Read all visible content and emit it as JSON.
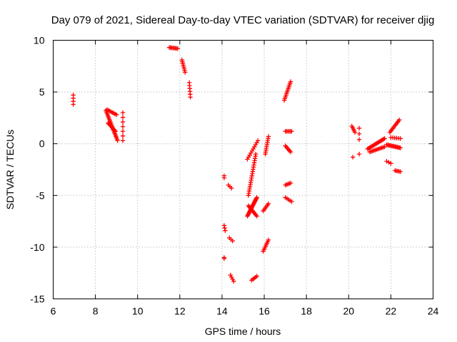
{
  "chart_data": {
    "type": "scatter",
    "title": "Day 079 of 2021, Sidereal Day-to-day VTEC variation (SDTVAR) for receiver djig",
    "xlabel": "GPS time / hours",
    "ylabel": "SDTVAR / TECUs",
    "xlim": [
      6,
      24
    ],
    "ylim": [
      -15,
      10
    ],
    "x_ticks": [
      "6",
      "8",
      "10",
      "12",
      "14",
      "16",
      "18",
      "20",
      "22",
      "24"
    ],
    "y_ticks": [
      "10",
      "5",
      "0",
      "-5",
      "-10",
      "-15"
    ],
    "grid": true,
    "marker": "+",
    "color": "#ff0000",
    "segments": [
      {
        "x0": 6.95,
        "y0": 4.7,
        "x1": 6.95,
        "y1": 3.8,
        "n": 4
      },
      {
        "x0": 8.5,
        "y0": 3.2,
        "x1": 9.05,
        "y1": 0.3,
        "n": 22
      },
      {
        "x0": 8.55,
        "y0": 3.3,
        "x1": 9.0,
        "y1": 2.8,
        "n": 8
      },
      {
        "x0": 8.6,
        "y0": 2.0,
        "x1": 8.95,
        "y1": 1.2,
        "n": 10
      },
      {
        "x0": 9.3,
        "y0": 3.0,
        "x1": 9.3,
        "y1": 0.3,
        "n": 7
      },
      {
        "x0": 11.5,
        "y0": 9.3,
        "x1": 11.9,
        "y1": 9.2,
        "n": 8
      },
      {
        "x0": 12.1,
        "y0": 8.1,
        "x1": 12.25,
        "y1": 6.9,
        "n": 8
      },
      {
        "x0": 12.45,
        "y0": 5.9,
        "x1": 12.5,
        "y1": 4.5,
        "n": 6
      },
      {
        "x0": 14.1,
        "y0": -3.1,
        "x1": 14.1,
        "y1": -3.3,
        "n": 2
      },
      {
        "x0": 14.3,
        "y0": -4.0,
        "x1": 14.45,
        "y1": -4.3,
        "n": 3
      },
      {
        "x0": 14.1,
        "y0": -7.9,
        "x1": 14.15,
        "y1": -8.4,
        "n": 3
      },
      {
        "x0": 14.35,
        "y0": -9.1,
        "x1": 14.5,
        "y1": -9.4,
        "n": 3
      },
      {
        "x0": 14.1,
        "y0": -11.0,
        "x1": 14.1,
        "y1": -11.1,
        "n": 2
      },
      {
        "x0": 14.4,
        "y0": -12.7,
        "x1": 14.55,
        "y1": -13.3,
        "n": 4
      },
      {
        "x0": 15.2,
        "y0": -1.5,
        "x1": 15.7,
        "y1": 0.3,
        "n": 10
      },
      {
        "x0": 15.25,
        "y0": -5.0,
        "x1": 15.6,
        "y1": -1.0,
        "n": 20
      },
      {
        "x0": 15.2,
        "y0": -7.0,
        "x1": 15.65,
        "y1": -5.2,
        "n": 20
      },
      {
        "x0": 15.25,
        "y0": -6.0,
        "x1": 15.65,
        "y1": -7.0,
        "n": 10
      },
      {
        "x0": 15.4,
        "y0": -13.2,
        "x1": 15.65,
        "y1": -12.8,
        "n": 5
      },
      {
        "x0": 15.95,
        "y0": -6.5,
        "x1": 16.2,
        "y1": -5.8,
        "n": 6
      },
      {
        "x0": 16.05,
        "y0": -1.0,
        "x1": 16.2,
        "y1": 0.7,
        "n": 10
      },
      {
        "x0": 15.95,
        "y0": -10.4,
        "x1": 16.2,
        "y1": -9.3,
        "n": 8
      },
      {
        "x0": 16.95,
        "y0": 4.2,
        "x1": 17.25,
        "y1": 6.0,
        "n": 12
      },
      {
        "x0": 17.0,
        "y0": 1.2,
        "x1": 17.3,
        "y1": 1.2,
        "n": 6
      },
      {
        "x0": 17.0,
        "y0": -0.2,
        "x1": 17.25,
        "y1": -0.8,
        "n": 6
      },
      {
        "x0": 17.0,
        "y0": -4.0,
        "x1": 17.25,
        "y1": -3.8,
        "n": 5
      },
      {
        "x0": 17.0,
        "y0": -5.2,
        "x1": 17.3,
        "y1": -5.6,
        "n": 5
      },
      {
        "x0": 20.15,
        "y0": 1.7,
        "x1": 20.3,
        "y1": 1.1,
        "n": 5
      },
      {
        "x0": 20.5,
        "y0": 1.5,
        "x1": 20.5,
        "y1": 0.4,
        "n": 3
      },
      {
        "x0": 20.2,
        "y0": -1.3,
        "x1": 20.5,
        "y1": -1.0,
        "n": 2
      },
      {
        "x0": 20.9,
        "y0": -0.5,
        "x1": 21.7,
        "y1": 0.5,
        "n": 18
      },
      {
        "x0": 21.0,
        "y0": -0.8,
        "x1": 21.7,
        "y1": -0.3,
        "n": 12
      },
      {
        "x0": 21.8,
        "y0": -0.1,
        "x1": 22.45,
        "y1": -0.4,
        "n": 14
      },
      {
        "x0": 21.95,
        "y0": 1.1,
        "x1": 22.4,
        "y1": 2.3,
        "n": 10
      },
      {
        "x0": 22.0,
        "y0": 0.6,
        "x1": 22.45,
        "y1": 0.5,
        "n": 6
      },
      {
        "x0": 21.8,
        "y0": -1.7,
        "x1": 22.0,
        "y1": -1.9,
        "n": 3
      },
      {
        "x0": 22.2,
        "y0": -2.6,
        "x1": 22.45,
        "y1": -2.7,
        "n": 5
      }
    ]
  }
}
